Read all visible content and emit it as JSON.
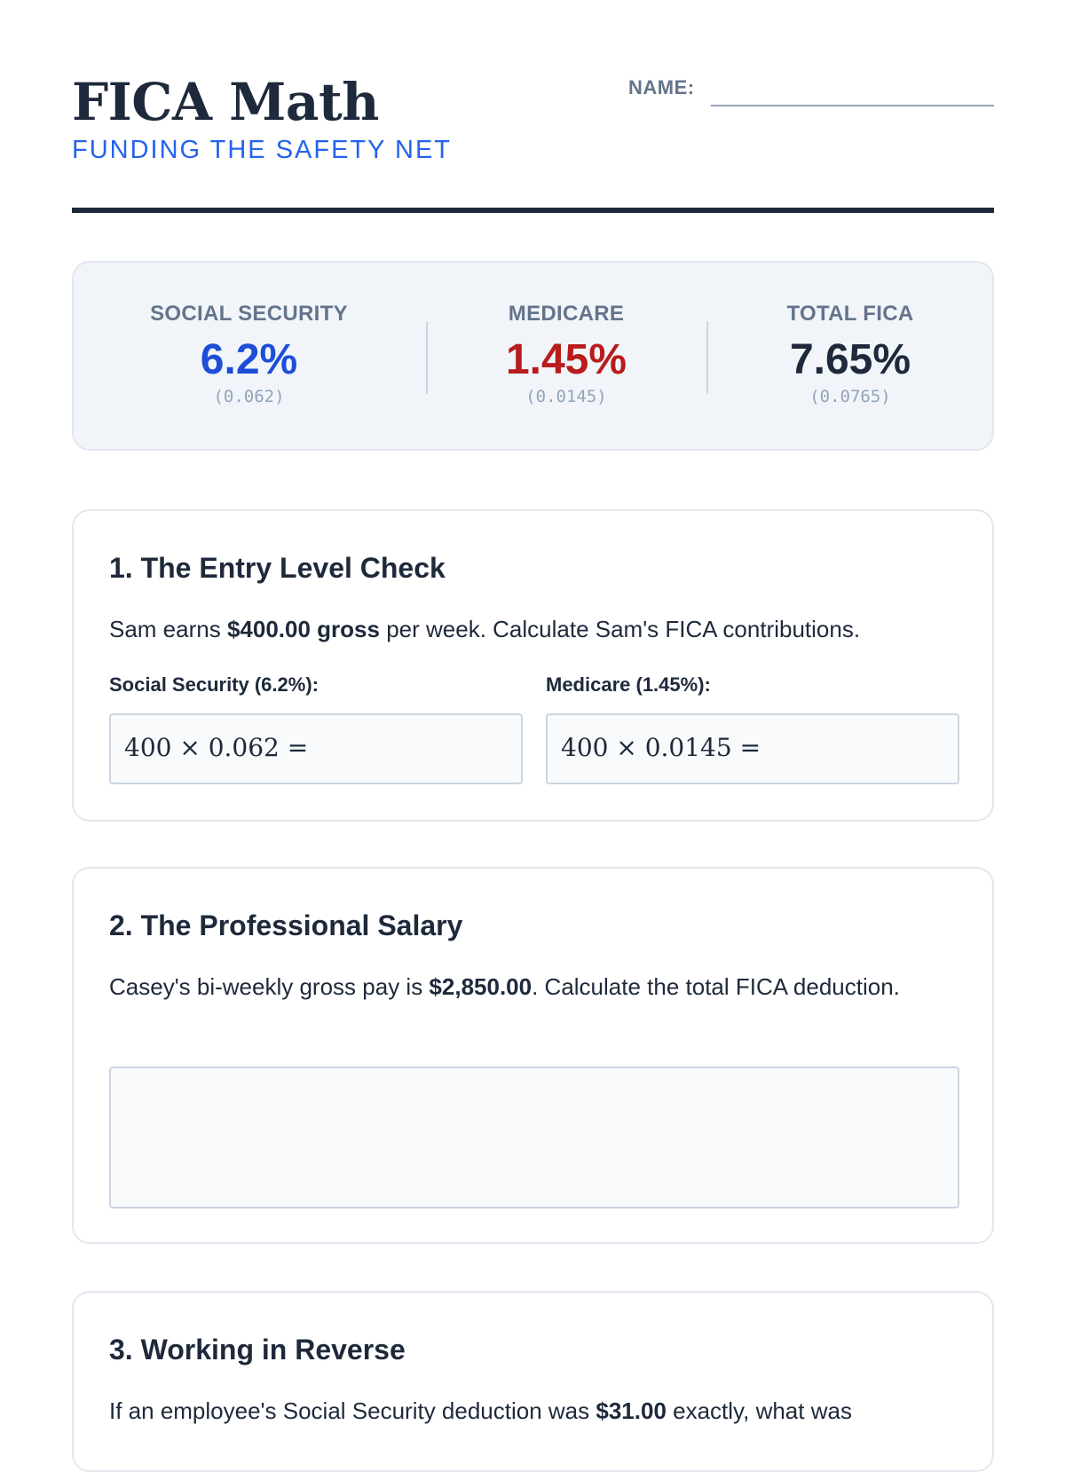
{
  "header": {
    "title": "FICA Math",
    "subtitle": "FUNDING THE SAFETY NET",
    "name_label": "NAME:"
  },
  "rates": [
    {
      "label": "SOCIAL SECURITY",
      "value": "6.2%",
      "decimal": "(0.062)",
      "color": "#1d4ed8"
    },
    {
      "label": "MEDICARE",
      "value": "1.45%",
      "decimal": "(0.0145)",
      "color": "#b91c1c"
    },
    {
      "label": "TOTAL FICA",
      "value": "7.65%",
      "decimal": "(0.0765)",
      "color": "#1e293b"
    }
  ],
  "problems": [
    {
      "title": "1. The Entry Level Check",
      "text_before": "Sam earns ",
      "text_bold": "$400.00 gross",
      "text_after": " per week. Calculate Sam's FICA contributions.",
      "fields": [
        {
          "label": "Social Security (6.2%):",
          "expression": "400 × 0.062 ="
        },
        {
          "label": "Medicare (1.45%):",
          "expression": "400 × 0.0145 ="
        }
      ]
    },
    {
      "title": "2. The Professional Salary",
      "text_before": "Casey's bi-weekly gross pay is ",
      "text_bold": "$2,850.00",
      "text_after": ". Calculate the total FICA deduction."
    },
    {
      "title": "3. Working in Reverse",
      "text_before": "If an employee's Social Security deduction was ",
      "text_bold": "$31.00",
      "text_after": " exactly, what was"
    }
  ]
}
